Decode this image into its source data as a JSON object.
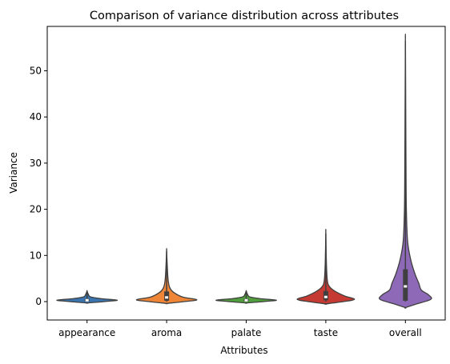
{
  "chart_data": {
    "type": "violin",
    "title": "Comparison of variance distribution across attributes",
    "xlabel": "Attributes",
    "ylabel": "Variance",
    "ylim": [
      -4.5,
      59
    ],
    "yticks": [
      0,
      10,
      20,
      30,
      40,
      50
    ],
    "grid": false,
    "categories": [
      "appearance",
      "aroma",
      "palate",
      "taste",
      "overall"
    ],
    "series": [
      {
        "category": "appearance",
        "color": "#3b75af",
        "min": 0,
        "max": 2.3,
        "q1": 0.05,
        "median": 0.3,
        "q3": 0.6,
        "density": [
          [
            -0.3,
            0.0
          ],
          [
            0.0,
            0.55
          ],
          [
            0.3,
            0.95
          ],
          [
            0.6,
            0.5
          ],
          [
            1.0,
            0.12
          ],
          [
            1.6,
            0.04
          ],
          [
            2.3,
            0.0
          ]
        ]
      },
      {
        "category": "aroma",
        "color": "#ef8536",
        "min": 0,
        "max": 11.0,
        "q1": 0.2,
        "median": 0.9,
        "q3": 2.2,
        "density": [
          [
            -0.4,
            0.0
          ],
          [
            0.0,
            0.55
          ],
          [
            0.4,
            0.95
          ],
          [
            1.0,
            0.5
          ],
          [
            2.0,
            0.22
          ],
          [
            3.0,
            0.1
          ],
          [
            4.5,
            0.05
          ],
          [
            7.0,
            0.025
          ],
          [
            11.0,
            0.0
          ]
        ]
      },
      {
        "category": "palate",
        "color": "#519e3e",
        "min": 0,
        "max": 2.3,
        "q1": 0.05,
        "median": 0.3,
        "q3": 0.6,
        "density": [
          [
            -0.3,
            0.0
          ],
          [
            0.0,
            0.55
          ],
          [
            0.3,
            0.95
          ],
          [
            0.6,
            0.5
          ],
          [
            1.0,
            0.12
          ],
          [
            1.6,
            0.04
          ],
          [
            2.3,
            0.0
          ]
        ]
      },
      {
        "category": "taste",
        "color": "#c53a32",
        "min": 0,
        "max": 14.8,
        "q1": 0.3,
        "median": 1.0,
        "q3": 2.3,
        "density": [
          [
            -0.5,
            0.0
          ],
          [
            0.0,
            0.55
          ],
          [
            0.5,
            0.9
          ],
          [
            1.2,
            0.6
          ],
          [
            2.2,
            0.3
          ],
          [
            3.2,
            0.12
          ],
          [
            4.5,
            0.05
          ],
          [
            8.0,
            0.02
          ],
          [
            14.8,
            0.0
          ]
        ]
      },
      {
        "category": "overall",
        "color": "#8d69b8",
        "min": 0,
        "max": 56.5,
        "q1": 0.2,
        "median": 3.3,
        "q3": 7.0,
        "density": [
          [
            -1.3,
            0.0
          ],
          [
            -0.5,
            0.35
          ],
          [
            0.5,
            0.8
          ],
          [
            1.5,
            0.72
          ],
          [
            2.5,
            0.5
          ],
          [
            4.0,
            0.42
          ],
          [
            6.0,
            0.3
          ],
          [
            9.0,
            0.17
          ],
          [
            13.0,
            0.07
          ],
          [
            20.0,
            0.03
          ],
          [
            30.0,
            0.018
          ],
          [
            45.0,
            0.008
          ],
          [
            56.5,
            0.0
          ]
        ]
      }
    ]
  }
}
